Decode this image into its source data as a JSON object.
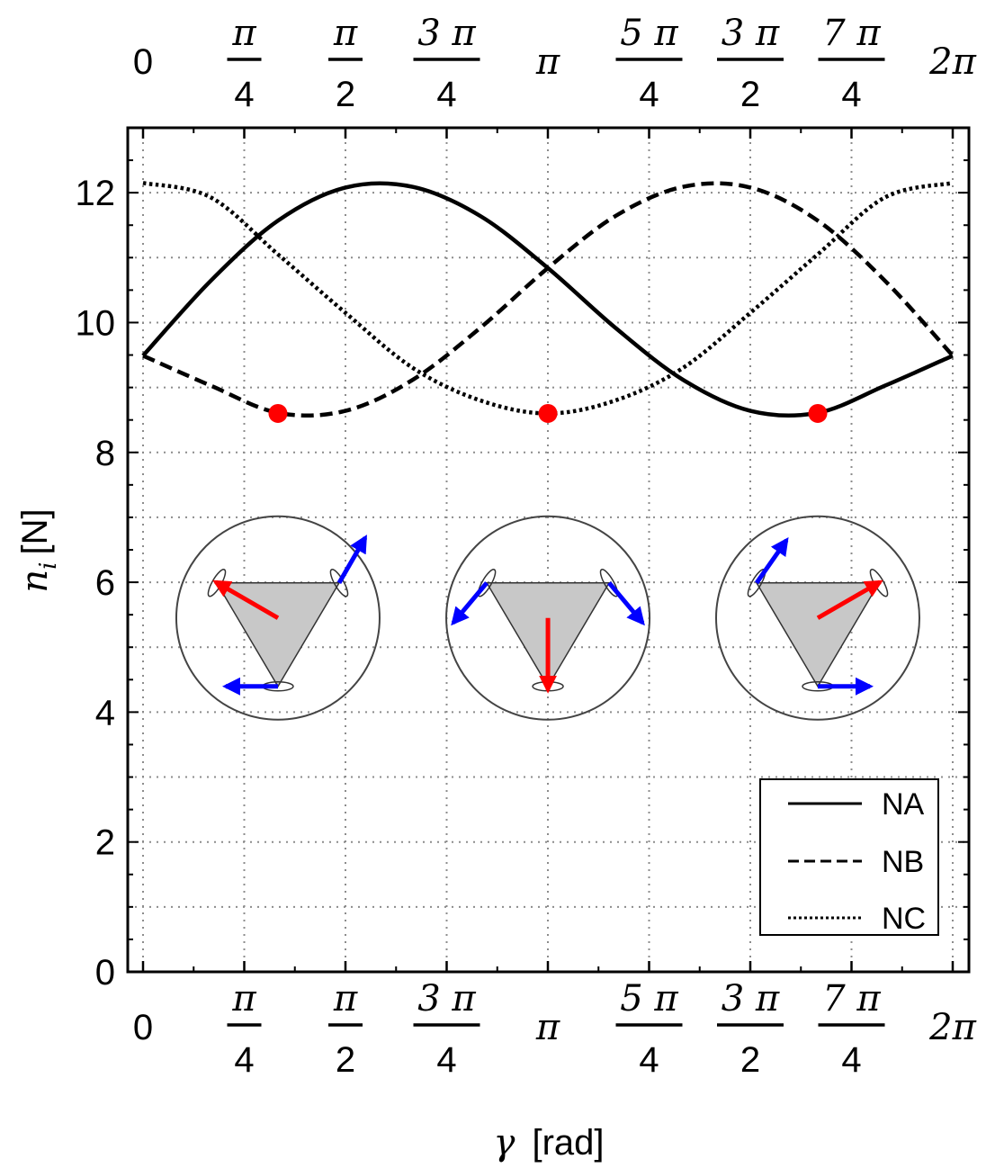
{
  "chart_data": {
    "type": "line",
    "xlabel": "γ [rad]",
    "xlabel_parts": {
      "symbol": "γ",
      "unit": "[rad]"
    },
    "ylabel": "n_i [N]",
    "ylabel_parts": {
      "symbol": "n",
      "sub": "i",
      "unit": "[N]"
    },
    "xlim": [
      0,
      6.283185
    ],
    "ylim": [
      0,
      13
    ],
    "grid": true,
    "grid_style": "dotted",
    "legend_position": "bottom-right",
    "x_ticks": [
      {
        "value": 0,
        "label": "0",
        "num": "",
        "den": ""
      },
      {
        "value": 0.785398,
        "label": "π/4",
        "num": "π",
        "den": "4"
      },
      {
        "value": 1.570796,
        "label": "π/2",
        "num": "π",
        "den": "2"
      },
      {
        "value": 2.356194,
        "label": "3π/4",
        "num": "3 π",
        "den": "4"
      },
      {
        "value": 3.141593,
        "label": "π",
        "num": "",
        "den": ""
      },
      {
        "value": 3.926991,
        "label": "5π/4",
        "num": "5 π",
        "den": "4"
      },
      {
        "value": 4.712389,
        "label": "3π/2",
        "num": "3 π",
        "den": "2"
      },
      {
        "value": 5.497787,
        "label": "7π/4",
        "num": "7 π",
        "den": "4"
      },
      {
        "value": 6.283185,
        "label": "2π",
        "num": "",
        "den": ""
      }
    ],
    "y_ticks": [
      {
        "value": 0,
        "label": "0"
      },
      {
        "value": 2,
        "label": "2"
      },
      {
        "value": 4,
        "label": "4"
      },
      {
        "value": 6,
        "label": "6"
      },
      {
        "value": 8,
        "label": "8"
      },
      {
        "value": 10,
        "label": "10"
      },
      {
        "value": 12,
        "label": "12"
      }
    ],
    "series": [
      {
        "name": "NA",
        "dash": "solid",
        "values": [
          9.49,
          10.64,
          11.57,
          12.08,
          12.09,
          11.64,
          10.84,
          9.92,
          9.12,
          8.64,
          8.61,
          9.03,
          9.49
        ],
        "x": [
          0,
          0.5236,
          1.0472,
          1.5708,
          2.0944,
          2.618,
          3.1416,
          3.6652,
          4.1888,
          4.7124,
          5.236,
          5.7596,
          6.2832
        ]
      },
      {
        "name": "NB",
        "dash": "dashed",
        "values": [
          9.49,
          9.03,
          8.61,
          8.64,
          9.12,
          9.92,
          10.84,
          11.64,
          12.09,
          12.08,
          11.57,
          10.64,
          9.49
        ],
        "x": [
          0,
          0.5236,
          1.0472,
          1.5708,
          2.0944,
          2.618,
          3.1416,
          3.6652,
          4.1888,
          4.7124,
          5.236,
          5.7596,
          6.2832
        ]
      },
      {
        "name": "NC",
        "dash": "dotted",
        "values": [
          12.15,
          11.93,
          11.05,
          10.15,
          9.3,
          8.8,
          8.6,
          8.8,
          9.3,
          10.15,
          11.05,
          11.93,
          12.15
        ],
        "x": [
          0,
          0.5236,
          1.0472,
          1.5708,
          2.0944,
          2.618,
          3.1416,
          3.6652,
          4.1888,
          4.7124,
          5.236,
          5.7596,
          6.2832
        ]
      }
    ],
    "minima_markers": [
      {
        "x": 1.047,
        "y": 8.6
      },
      {
        "x": 3.142,
        "y": 8.6
      },
      {
        "x": 5.236,
        "y": 8.6
      }
    ],
    "inset_diagrams": [
      {
        "at_x": 1.047,
        "red_arrow_deg": 150,
        "blue_arrows_deg": [
          60,
          180
        ]
      },
      {
        "at_x": 3.142,
        "red_arrow_deg": 270,
        "blue_arrows_deg": [
          230,
          310
        ]
      },
      {
        "at_x": 5.236,
        "red_arrow_deg": 30,
        "blue_arrows_deg": [
          55,
          0
        ]
      }
    ],
    "colors": {
      "curve": "#000000",
      "marker": "#ff0000",
      "red_arrow": "#ff0000",
      "blue_arrow": "#0000ff",
      "triangle_fill": "#c8c8c8",
      "grid": "#8c8c8c"
    }
  }
}
